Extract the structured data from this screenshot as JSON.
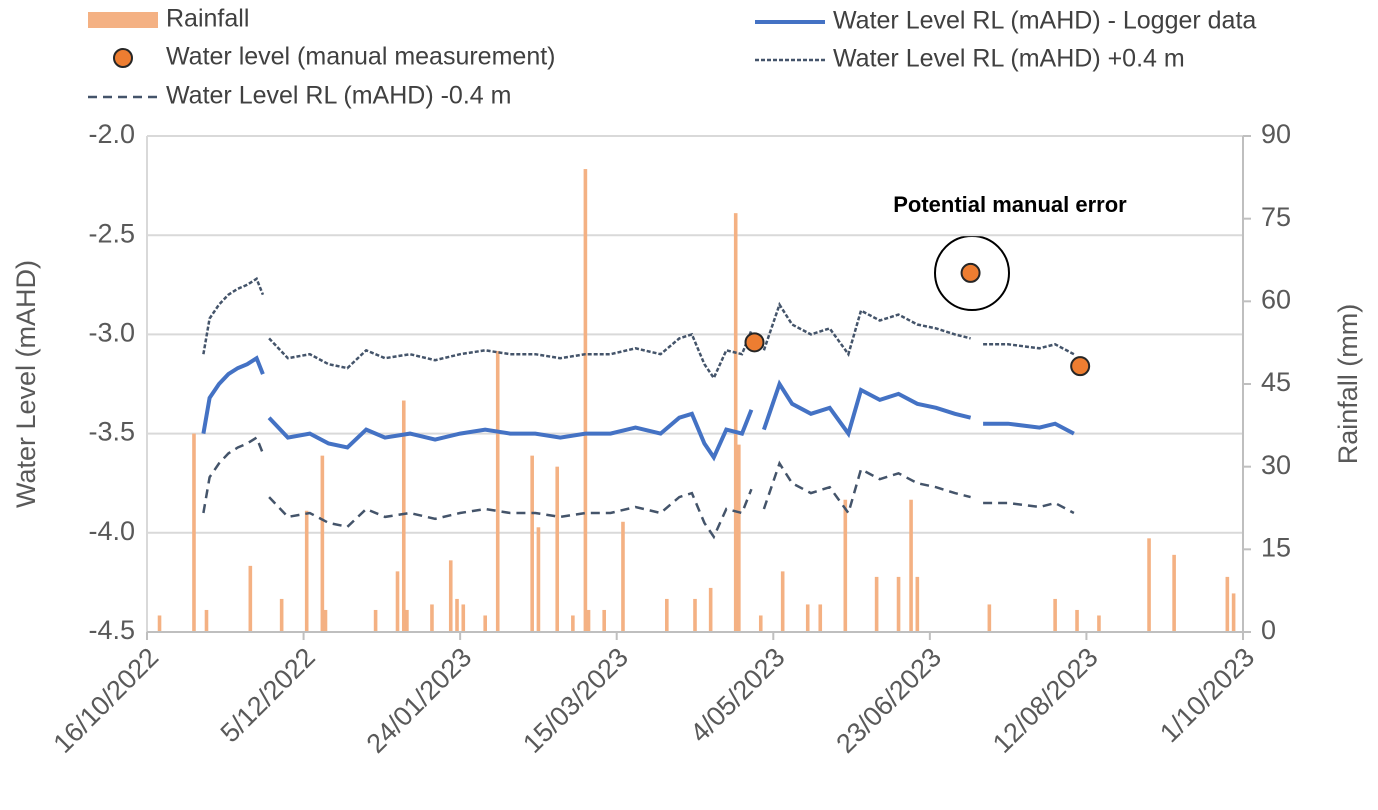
{
  "chart_data": {
    "type": "combo",
    "annotation": "Potential manual error",
    "y_label": "Water Level (mAHD)",
    "y2_label": "Rainfall (mm)",
    "xlim": [
      "16/10/2022",
      "1/10/2023"
    ],
    "xticks": [
      "16/10/2022",
      "5/12/2022",
      "24/01/2023",
      "15/03/2023",
      "4/05/2023",
      "23/06/2023",
      "12/08/2023",
      "1/10/2023"
    ],
    "ylim": [
      -4.5,
      -2.0
    ],
    "yticks": [
      {
        "value": -4.5,
        "label": "-4.5"
      },
      {
        "value": -4.0,
        "label": "-4.0"
      },
      -3.5,
      {
        "value": -3.0,
        "label": "-3.0"
      },
      -2.5,
      {
        "value": -2.0,
        "label": "-2.0"
      }
    ],
    "y2lim": [
      0,
      90
    ],
    "y2ticks": [
      0,
      15,
      30,
      45,
      60,
      75,
      90
    ],
    "grid": true,
    "series": [
      {
        "name": "Rainfall",
        "type": "bar",
        "axis": "y2",
        "color": "#f4b183",
        "x": [
          "20/10/2022",
          "31/10/2022",
          "4/11/2022",
          "18/11/2022",
          "28/11/2022",
          "6/12/2022",
          "11/12/2022",
          "12/12/2022",
          "28/12/2022",
          "4/01/2023",
          "6/01/2023",
          "7/01/2023",
          "15/01/2023",
          "21/01/2023",
          "23/01/2023",
          "25/01/2023",
          "1/02/2023",
          "5/02/2023",
          "16/02/2023",
          "18/02/2023",
          "24/02/2023",
          "1/03/2023",
          "5/03/2023",
          "6/03/2023",
          "11/03/2023",
          "17/03/2023",
          "31/03/2023",
          "9/04/2023",
          "14/04/2023",
          "22/04/2023",
          "23/04/2023",
          "30/04/2023",
          "7/05/2023",
          "15/05/2023",
          "19/05/2023",
          "27/05/2023",
          "6/06/2023",
          "13/06/2023",
          "17/06/2023",
          "19/06/2023",
          "12/07/2023",
          "2/08/2023",
          "9/08/2023",
          "16/08/2023",
          "1/09/2023",
          "9/09/2023",
          "26/09/2023",
          "28/09/2023"
        ],
        "values": [
          3,
          36,
          4,
          12,
          6,
          22,
          32,
          4,
          4,
          11,
          42,
          4,
          5,
          13,
          6,
          5,
          3,
          51,
          32,
          19,
          30,
          3,
          84,
          4,
          4,
          20,
          6,
          6,
          8,
          76,
          34,
          3,
          11,
          5,
          5,
          24,
          10,
          10,
          24,
          10,
          5,
          6,
          4,
          3,
          17,
          14,
          10,
          7
        ]
      },
      {
        "name": "Water Level RL (mAHD) - Logger data",
        "type": "line",
        "axis": "y",
        "color": "#4472c4",
        "line_style": "solid",
        "x": [
          "3/11/2022",
          "5/11/2022",
          "8/11/2022",
          "11/11/2022",
          "14/11/2022",
          "17/11/2022",
          "20/11/2022",
          "22/11/2022",
          "23/11/2022",
          "24/11/2022",
          "30/11/2022",
          "7/12/2022",
          "13/12/2022",
          "19/12/2022",
          "25/12/2022",
          "31/12/2022",
          "8/01/2023",
          "16/01/2023",
          "24/01/2023",
          "1/02/2023",
          "9/02/2023",
          "17/02/2023",
          "25/02/2023",
          "5/03/2023",
          "13/03/2023",
          "21/03/2023",
          "29/03/2023",
          "4/04/2023",
          "8/04/2023",
          "12/04/2023",
          "15/04/2023",
          "19/04/2023",
          "24/04/2023",
          "27/04/2023",
          "29/04/2023",
          "1/05/2023",
          "6/05/2023",
          "10/05/2023",
          "16/05/2023",
          "22/05/2023",
          "28/05/2023",
          "1/06/2023",
          "7/06/2023",
          "13/06/2023",
          "19/06/2023",
          "25/06/2023",
          "1/07/2023",
          "6/07/2023",
          "8/07/2023",
          "10/07/2023",
          "18/07/2023",
          "28/07/2023",
          "2/08/2023",
          "8/08/2023"
        ],
        "values": [
          -3.5,
          -3.32,
          -3.25,
          -3.2,
          -3.17,
          -3.15,
          -3.12,
          -3.2,
          null,
          -3.42,
          -3.52,
          -3.5,
          -3.55,
          -3.57,
          -3.48,
          -3.52,
          -3.5,
          -3.53,
          -3.5,
          -3.48,
          -3.5,
          -3.5,
          -3.52,
          -3.5,
          -3.5,
          -3.47,
          -3.5,
          -3.42,
          -3.4,
          -3.55,
          -3.62,
          -3.48,
          -3.5,
          -3.38,
          null,
          -3.48,
          -3.25,
          -3.35,
          -3.4,
          -3.37,
          -3.5,
          -3.28,
          -3.33,
          -3.3,
          -3.35,
          -3.37,
          -3.4,
          -3.42,
          null,
          -3.45,
          -3.45,
          -3.47,
          -3.45,
          -3.5
        ]
      },
      {
        "name": "Water Level RL (mAHD) +0.4 m",
        "type": "line",
        "axis": "y",
        "color": "#44546a",
        "line_style": "dotted",
        "x": [
          "3/11/2022",
          "5/11/2022",
          "8/11/2022",
          "11/11/2022",
          "14/11/2022",
          "17/11/2022",
          "20/11/2022",
          "22/11/2022",
          "23/11/2022",
          "24/11/2022",
          "30/11/2022",
          "7/12/2022",
          "13/12/2022",
          "19/12/2022",
          "25/12/2022",
          "31/12/2022",
          "8/01/2023",
          "16/01/2023",
          "24/01/2023",
          "1/02/2023",
          "9/02/2023",
          "17/02/2023",
          "25/02/2023",
          "5/03/2023",
          "13/03/2023",
          "21/03/2023",
          "29/03/2023",
          "4/04/2023",
          "8/04/2023",
          "12/04/2023",
          "15/04/2023",
          "19/04/2023",
          "24/04/2023",
          "27/04/2023",
          "29/04/2023",
          "1/05/2023",
          "6/05/2023",
          "10/05/2023",
          "16/05/2023",
          "22/05/2023",
          "28/05/2023",
          "1/06/2023",
          "7/06/2023",
          "13/06/2023",
          "19/06/2023",
          "25/06/2023",
          "1/07/2023",
          "6/07/2023",
          "8/07/2023",
          "10/07/2023",
          "18/07/2023",
          "28/07/2023",
          "2/08/2023",
          "8/08/2023"
        ],
        "values": [
          -3.1,
          -2.92,
          -2.85,
          -2.8,
          -2.77,
          -2.75,
          -2.72,
          -2.8,
          null,
          -3.02,
          -3.12,
          -3.1,
          -3.15,
          -3.17,
          -3.08,
          -3.12,
          -3.1,
          -3.13,
          -3.1,
          -3.08,
          -3.1,
          -3.1,
          -3.12,
          -3.1,
          -3.1,
          -3.07,
          -3.1,
          -3.02,
          -3.0,
          -3.15,
          -3.22,
          -3.08,
          -3.1,
          -2.98,
          null,
          -3.08,
          -2.85,
          -2.95,
          -3.0,
          -2.97,
          -3.1,
          -2.88,
          -2.93,
          -2.9,
          -2.95,
          -2.97,
          -3.0,
          -3.02,
          null,
          -3.05,
          -3.05,
          -3.07,
          -3.05,
          -3.1
        ]
      },
      {
        "name": "Water Level RL (mAHD) -0.4 m",
        "type": "line",
        "axis": "y",
        "color": "#44546a",
        "line_style": "dashed",
        "x": [
          "3/11/2022",
          "5/11/2022",
          "8/11/2022",
          "11/11/2022",
          "14/11/2022",
          "17/11/2022",
          "20/11/2022",
          "22/11/2022",
          "23/11/2022",
          "24/11/2022",
          "30/11/2022",
          "7/12/2022",
          "13/12/2022",
          "19/12/2022",
          "25/12/2022",
          "31/12/2022",
          "8/01/2023",
          "16/01/2023",
          "24/01/2023",
          "1/02/2023",
          "9/02/2023",
          "17/02/2023",
          "25/02/2023",
          "5/03/2023",
          "13/03/2023",
          "21/03/2023",
          "29/03/2023",
          "4/04/2023",
          "8/04/2023",
          "12/04/2023",
          "15/04/2023",
          "19/04/2023",
          "24/04/2023",
          "27/04/2023",
          "29/04/2023",
          "1/05/2023",
          "6/05/2023",
          "10/05/2023",
          "16/05/2023",
          "22/05/2023",
          "28/05/2023",
          "1/06/2023",
          "7/06/2023",
          "13/06/2023",
          "19/06/2023",
          "25/06/2023",
          "1/07/2023",
          "6/07/2023",
          "8/07/2023",
          "10/07/2023",
          "18/07/2023",
          "28/07/2023",
          "2/08/2023",
          "8/08/2023"
        ],
        "values": [
          -3.9,
          -3.72,
          -3.65,
          -3.6,
          -3.57,
          -3.55,
          -3.52,
          -3.6,
          null,
          -3.82,
          -3.92,
          -3.9,
          -3.95,
          -3.97,
          -3.88,
          -3.92,
          -3.9,
          -3.93,
          -3.9,
          -3.88,
          -3.9,
          -3.9,
          -3.92,
          -3.9,
          -3.9,
          -3.87,
          -3.9,
          -3.82,
          -3.8,
          -3.95,
          -4.02,
          -3.88,
          -3.9,
          -3.78,
          null,
          -3.88,
          -3.65,
          -3.75,
          -3.8,
          -3.77,
          -3.9,
          -3.68,
          -3.73,
          -3.7,
          -3.75,
          -3.77,
          -3.8,
          -3.82,
          null,
          -3.85,
          -3.85,
          -3.87,
          -3.85,
          -3.9
        ]
      },
      {
        "name": "Water level (manual measurement)",
        "type": "scatter",
        "axis": "y",
        "color": "#ed7d31",
        "x": [
          "28/04/2023",
          "6/07/2023",
          "10/08/2023"
        ],
        "values": [
          -3.04,
          -2.69,
          -3.16
        ]
      }
    ]
  }
}
